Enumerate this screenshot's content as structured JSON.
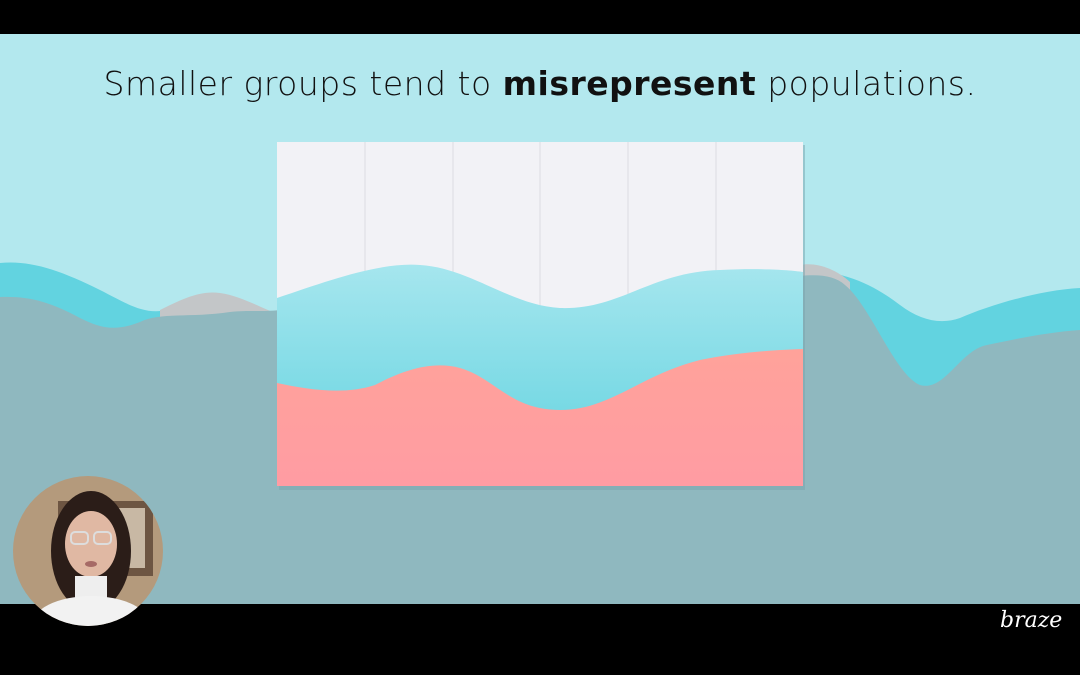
{
  "slide": {
    "title_before": "Smaller groups tend to ",
    "title_bold": "misrepresent",
    "title_after": " populations."
  },
  "brand": {
    "logo_text": "braze"
  },
  "colors": {
    "slide_background": "#b3e8ee",
    "gray_layer": "#8fb8bf",
    "cyan_layer": "#62d3e0",
    "pink_layer": "#ff9fa0",
    "chart_panel": "#f2f2f6"
  },
  "webcam": {
    "icon": "presenter-video"
  }
}
